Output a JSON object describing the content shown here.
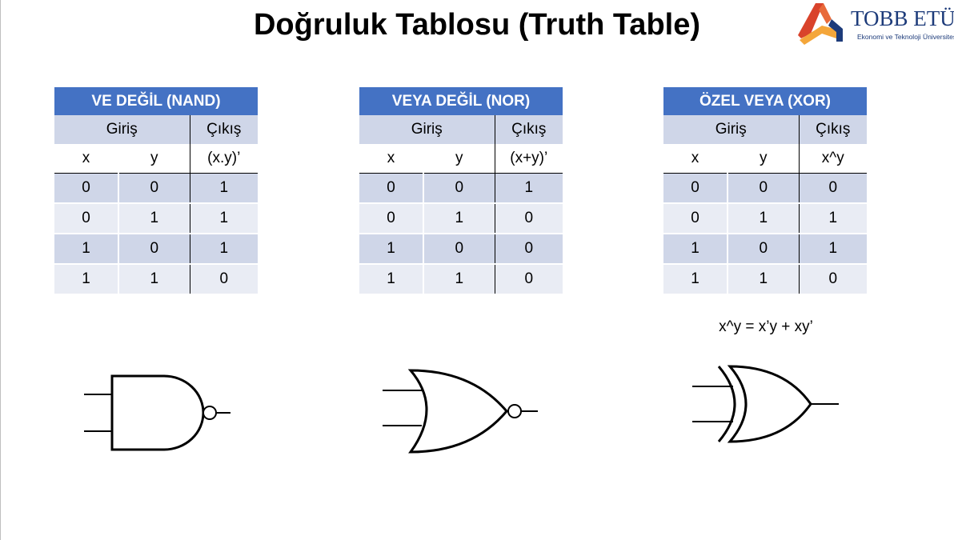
{
  "title": "Doğruluk Tablosu (Truth Table)",
  "logo": {
    "name": "TOBB ETÜ",
    "subtitle": "Ekonomi ve Teknoloji Üniversitesi"
  },
  "tables": [
    {
      "caption": "VE DEĞİL (NAND)",
      "input_label": "Giriş",
      "output_label": "Çıkış",
      "columns": [
        "x",
        "y",
        "(x.y)’"
      ],
      "rows": [
        [
          "0",
          "0",
          "1"
        ],
        [
          "0",
          "1",
          "1"
        ],
        [
          "1",
          "0",
          "1"
        ],
        [
          "1",
          "1",
          "0"
        ]
      ]
    },
    {
      "caption": "VEYA DEĞİL (NOR)",
      "input_label": "Giriş",
      "output_label": "Çıkış",
      "columns": [
        "x",
        "y",
        "(x+y)’"
      ],
      "rows": [
        [
          "0",
          "0",
          "1"
        ],
        [
          "0",
          "1",
          "0"
        ],
        [
          "1",
          "0",
          "0"
        ],
        [
          "1",
          "1",
          "0"
        ]
      ]
    },
    {
      "caption": "ÖZEL VEYA (XOR)",
      "input_label": "Giriş",
      "output_label": "Çıkış",
      "columns": [
        "x",
        "y",
        "x^y"
      ],
      "rows": [
        [
          "0",
          "0",
          "0"
        ],
        [
          "0",
          "1",
          "1"
        ],
        [
          "1",
          "0",
          "1"
        ],
        [
          "1",
          "1",
          "0"
        ]
      ]
    }
  ],
  "xor_formula": "x^y = x’y + xy’",
  "gates": [
    "nand-gate-symbol",
    "nor-gate-symbol",
    "xor-gate-symbol"
  ],
  "colors": {
    "header_blue": "#4472c4",
    "row_dark": "#cfd6e8",
    "row_light": "#e9ecf4",
    "logo_red": "#d9432b",
    "logo_orange": "#f4a63a",
    "logo_navy": "#1d3b7a"
  }
}
